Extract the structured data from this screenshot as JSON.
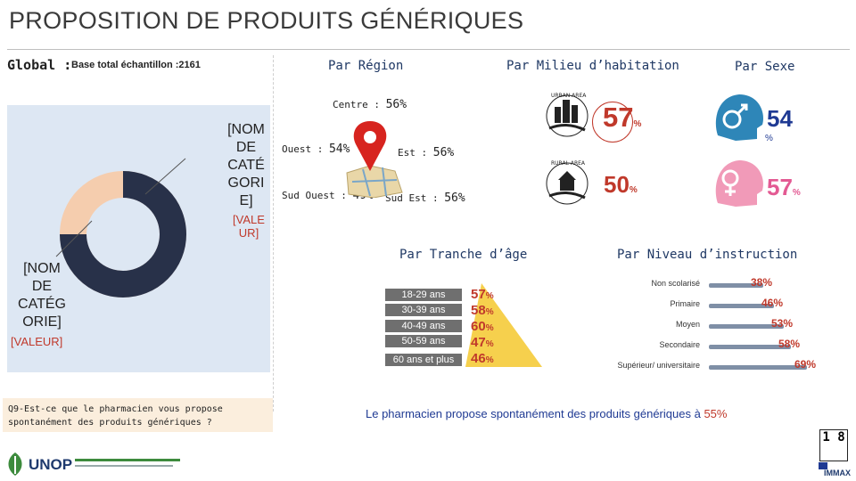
{
  "title": "PROPOSITION DE PRODUITS GÉNÉRIQUES",
  "global": {
    "label": "Global :",
    "base": "Base total échantillon :2161",
    "donut": {
      "category_top": "[NOM DE CATÉ GORI E]",
      "value_top": "[VALE UR]",
      "category_bottom": "[NOM DE CATÉG ORIE]",
      "value_bottom": "[VALEUR]",
      "colors": {
        "dark": "#283149",
        "light": "#f5cdae"
      }
    }
  },
  "region": {
    "title": "Par Région",
    "items": [
      {
        "label": "Centre :",
        "value": "56",
        "unit": "%"
      },
      {
        "label": "Ouest :",
        "value": "54",
        "unit": "%"
      },
      {
        "label": "Est :",
        "value": "56",
        "unit": "%"
      },
      {
        "label": "Sud Ouest :",
        "value": "49",
        "unit": "%"
      },
      {
        "label": "Sud Est :",
        "value": "56",
        "unit": "%"
      }
    ]
  },
  "milieu": {
    "title": "Par Milieu d’habitation",
    "urban": {
      "icon": "urban-area-icon",
      "value": "57",
      "unit": "%"
    },
    "rural": {
      "icon": "rural-area-icon",
      "value": "50",
      "unit": "%"
    }
  },
  "sexe": {
    "title": "Par Sexe",
    "male": {
      "icon": "male-icon",
      "value": "54",
      "unit": "%"
    },
    "female": {
      "icon": "female-icon",
      "value": "57",
      "unit": "%"
    }
  },
  "age": {
    "title": "Par Tranche d’âge",
    "rows": [
      {
        "label": "18-29 ans",
        "value": "57",
        "unit": "%"
      },
      {
        "label": "30-39 ans",
        "value": "58",
        "unit": "%"
      },
      {
        "label": "40-49 ans",
        "value": "60",
        "unit": "%"
      },
      {
        "label": "50-59 ans",
        "value": "47",
        "unit": "%"
      },
      {
        "label": "60 ans et plus",
        "value": "46",
        "unit": "%"
      }
    ]
  },
  "education": {
    "title": "Par Niveau d’instruction",
    "rows": [
      {
        "label": "Non scolarisé",
        "value": "38%",
        "level": 38
      },
      {
        "label": "Primaire",
        "value": "46%",
        "level": 46
      },
      {
        "label": "Moyen",
        "value": "53%",
        "level": 53
      },
      {
        "label": "Secondaire",
        "value": "58%",
        "level": 58
      },
      {
        "label": "Supérieur/ universitaire",
        "value": "69%",
        "level": 69
      }
    ]
  },
  "question": "Q9-Est-ce que le pharmacien vous propose spontanément des produits génériques ?",
  "conclusion": {
    "text": "Le pharmacien propose spontanément des produits génériques à",
    "value": "55%"
  },
  "footer": {
    "logo_left": "UNOP",
    "logo_right": "IMMAX",
    "page": "1 8"
  }
}
